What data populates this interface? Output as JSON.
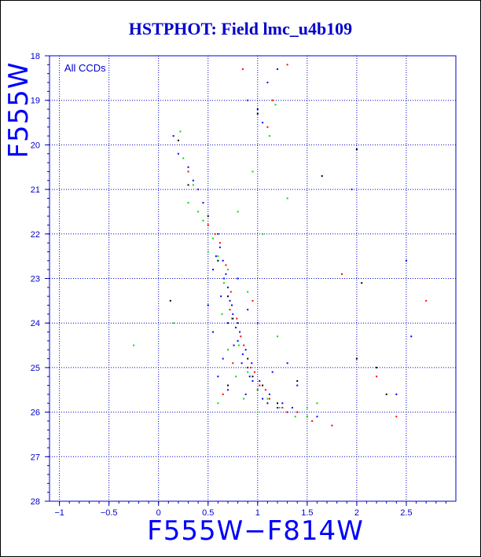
{
  "chart_data": {
    "type": "scatter",
    "title": "HSTPHOT: Field lmc_u4b109",
    "xlabel": "F555W−F814W",
    "ylabel": "F555W",
    "annotation": "All CCDs",
    "xlim": [
      -1.1,
      3.0
    ],
    "ylim": [
      28,
      18
    ],
    "y_inverted": true,
    "x_ticks": [
      -1,
      -0.5,
      0,
      0.5,
      1,
      1.5,
      2,
      2.5
    ],
    "x_tick_labels": [
      "−1",
      "−0.5",
      "0",
      "0.5",
      "1",
      "1.5",
      "2",
      "2.5"
    ],
    "y_ticks": [
      18,
      19,
      20,
      21,
      22,
      23,
      24,
      25,
      26,
      27,
      28
    ],
    "y_tick_labels": [
      "18",
      "19",
      "20",
      "21",
      "22",
      "23",
      "24",
      "25",
      "26",
      "27",
      "28"
    ],
    "grid": "dotted",
    "colors": {
      "title": "#0000cc",
      "axis": "#0000cc",
      "grid": "#0000cc",
      "axis_label": "#0000ff"
    },
    "series": [
      {
        "color": "#0000ff",
        "points": [
          [
            0.6,
            22.0
          ],
          [
            0.62,
            22.3
          ],
          [
            0.65,
            22.6
          ],
          [
            0.68,
            22.9
          ],
          [
            0.7,
            23.2
          ],
          [
            0.72,
            23.5
          ],
          [
            0.75,
            23.8
          ],
          [
            0.78,
            24.1
          ],
          [
            0.8,
            24.4
          ],
          [
            0.85,
            24.7
          ],
          [
            0.9,
            25.0
          ],
          [
            0.95,
            25.3
          ],
          [
            1.0,
            25.5
          ],
          [
            1.05,
            25.7
          ],
          [
            1.1,
            25.8
          ],
          [
            1.2,
            25.9
          ],
          [
            1.3,
            26.0
          ],
          [
            1.4,
            26.0
          ],
          [
            1.5,
            26.1
          ],
          [
            0.66,
            23.0
          ],
          [
            0.74,
            23.6
          ],
          [
            0.82,
            24.2
          ],
          [
            0.88,
            24.6
          ],
          [
            0.94,
            24.9
          ],
          [
            1.02,
            25.3
          ],
          [
            1.12,
            25.6
          ],
          [
            1.25,
            25.8
          ],
          [
            0.58,
            22.5
          ],
          [
            0.63,
            23.4
          ],
          [
            0.7,
            24.0
          ],
          [
            0.76,
            24.5
          ],
          [
            0.84,
            24.9
          ],
          [
            0.92,
            25.2
          ],
          [
            1.35,
            25.9
          ],
          [
            1.6,
            26.1
          ],
          [
            0.45,
            21.3
          ],
          [
            0.4,
            21.0
          ],
          [
            0.35,
            20.8
          ],
          [
            0.3,
            20.5
          ],
          [
            1.0,
            19.2
          ],
          [
            1.05,
            19.5
          ],
          [
            0.9,
            19.0
          ],
          [
            1.1,
            18.6
          ],
          [
            1.2,
            18.3
          ],
          [
            0.2,
            20.2
          ],
          [
            0.15,
            19.8
          ],
          [
            0.88,
            25.6
          ],
          [
            0.7,
            25.5
          ],
          [
            0.6,
            25.2
          ],
          [
            1.4,
            25.4
          ],
          [
            1.3,
            24.9
          ],
          [
            1.95,
            21.0
          ],
          [
            2.5,
            22.6
          ],
          [
            2.4,
            25.6
          ],
          [
            2.55,
            24.3
          ],
          [
            0.5,
            23.6
          ],
          [
            0.55,
            24.2
          ],
          [
            0.65,
            24.8
          ],
          [
            1.15,
            25.1
          ],
          [
            0.8,
            23.0
          ],
          [
            0.9,
            23.7
          ],
          [
            0.55,
            22.8
          ],
          [
            1.0,
            24.0
          ]
        ]
      },
      {
        "color": "#ff0000",
        "points": [
          [
            0.62,
            22.2
          ],
          [
            0.68,
            22.7
          ],
          [
            0.73,
            23.3
          ],
          [
            0.79,
            23.9
          ],
          [
            0.86,
            24.5
          ],
          [
            0.93,
            25.0
          ],
          [
            1.02,
            25.4
          ],
          [
            1.12,
            25.7
          ],
          [
            1.25,
            25.9
          ],
          [
            1.4,
            26.0
          ],
          [
            1.55,
            26.2
          ],
          [
            1.75,
            26.3
          ],
          [
            0.57,
            22.0
          ],
          [
            0.72,
            23.7
          ],
          [
            0.83,
            24.3
          ],
          [
            0.97,
            25.1
          ],
          [
            1.08,
            25.5
          ],
          [
            0.3,
            20.6
          ],
          [
            0.5,
            21.8
          ],
          [
            1.1,
            19.6
          ],
          [
            1.15,
            19.0
          ],
          [
            0.85,
            18.3
          ],
          [
            1.3,
            18.2
          ],
          [
            2.7,
            23.5
          ],
          [
            2.4,
            26.1
          ],
          [
            2.2,
            25.2
          ],
          [
            1.85,
            22.9
          ],
          [
            1.3,
            26.0
          ],
          [
            0.95,
            23.5
          ],
          [
            0.75,
            24.9
          ],
          [
            0.65,
            25.6
          ]
        ]
      },
      {
        "color": "#00dd00",
        "points": [
          [
            0.55,
            22.1
          ],
          [
            0.6,
            22.5
          ],
          [
            0.66,
            23.1
          ],
          [
            0.74,
            23.9
          ],
          [
            0.81,
            24.5
          ],
          [
            0.9,
            25.1
          ],
          [
            1.0,
            25.5
          ],
          [
            1.1,
            25.7
          ],
          [
            1.22,
            25.9
          ],
          [
            1.38,
            26.1
          ],
          [
            1.5,
            25.9
          ],
          [
            0.5,
            22.4
          ],
          [
            0.64,
            23.8
          ],
          [
            0.7,
            24.6
          ],
          [
            0.78,
            25.2
          ],
          [
            0.86,
            25.7
          ],
          [
            1.0,
            26.0
          ],
          [
            0.45,
            21.7
          ],
          [
            0.4,
            21.5
          ],
          [
            0.35,
            20.9
          ],
          [
            0.25,
            20.3
          ],
          [
            0.22,
            19.7
          ],
          [
            1.12,
            19.8
          ],
          [
            1.18,
            19.1
          ],
          [
            0.95,
            20.6
          ],
          [
            1.3,
            21.2
          ],
          [
            0.8,
            21.5
          ],
          [
            1.05,
            22.0
          ],
          [
            -0.25,
            24.5
          ],
          [
            0.15,
            24.0
          ],
          [
            0.9,
            23.3
          ],
          [
            1.2,
            24.3
          ],
          [
            1.6,
            25.8
          ],
          [
            0.6,
            25.8
          ],
          [
            0.3,
            21.3
          ],
          [
            1.5,
            26.1
          ],
          [
            0.7,
            22.8
          ]
        ]
      },
      {
        "color": "#000000",
        "points": [
          [
            0.7,
            23.4
          ],
          [
            0.8,
            24.0
          ],
          [
            0.9,
            24.8
          ],
          [
            1.05,
            25.4
          ],
          [
            1.2,
            25.8
          ],
          [
            0.6,
            22.6
          ],
          [
            0.75,
            23.9
          ],
          [
            0.95,
            25.2
          ],
          [
            0.3,
            20.9
          ],
          [
            1.0,
            19.3
          ],
          [
            0.2,
            19.9
          ],
          [
            0.12,
            23.5
          ],
          [
            2.05,
            23.1
          ],
          [
            2.0,
            24.8
          ],
          [
            2.2,
            25.0
          ],
          [
            2.3,
            25.6
          ],
          [
            2.0,
            20.1
          ],
          [
            1.65,
            20.7
          ],
          [
            1.4,
            25.3
          ],
          [
            0.7,
            25.4
          ],
          [
            0.5,
            21.6
          ]
        ]
      }
    ]
  }
}
